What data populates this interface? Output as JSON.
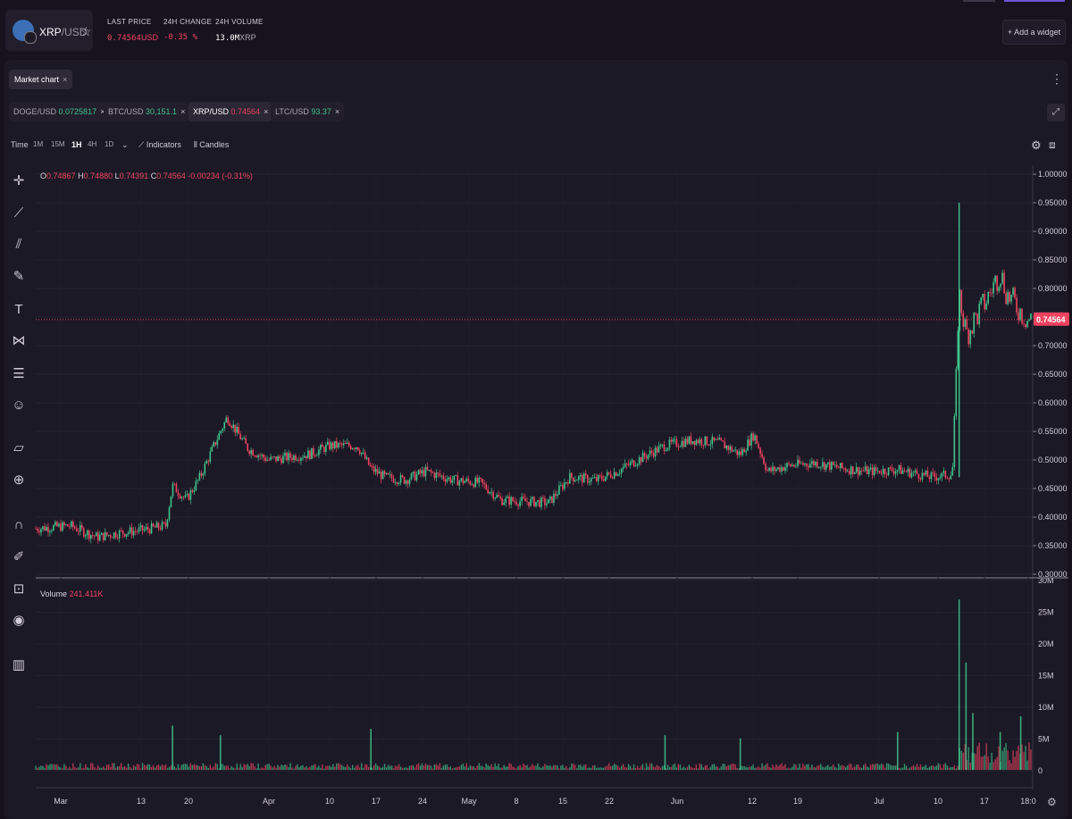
{
  "header": {
    "pair_base": "XRP",
    "pair_quote": "/USD",
    "stats": [
      {
        "label": "LAST PRICE",
        "value": "0.74564",
        "unit": "USD"
      },
      {
        "label": "24H CHANGE",
        "value": "-0.35 %",
        "unit": ""
      },
      {
        "label": "24H VOLUME",
        "value": "13.0M",
        "unit": "XRP"
      }
    ],
    "add_widget": "Add a widget",
    "plus_glyph": "+"
  },
  "market_chart": {
    "title": "Market chart",
    "close": "×"
  },
  "tabs": [
    {
      "pair": "DOGE/USD",
      "price": "0.0725817",
      "tone": "up",
      "active": false
    },
    {
      "pair": "BTC/USD",
      "price": "30,151.1",
      "tone": "up",
      "active": false
    },
    {
      "pair": "XRP/USD",
      "price": "0.74564",
      "tone": "down",
      "active": true
    },
    {
      "pair": "LTC/USD",
      "price": "93.37",
      "tone": "up",
      "active": false
    }
  ],
  "toolbar": {
    "time_label": "Time",
    "intervals": [
      "1M",
      "15M",
      "1H",
      "4H",
      "1D"
    ],
    "selected_interval": "1H",
    "indicators": "Indicators",
    "candles": "Candles"
  },
  "ohlc": {
    "o": "0.74867",
    "h": "0.74880",
    "l": "0.74391",
    "c": "0.74564",
    "change": "-0.00234 (-0.31%)"
  },
  "volume": {
    "label": "Volume",
    "value": "241.411K"
  },
  "icons": {
    "crosshair": "crosshair-icon",
    "trend_line": "trend-line-icon",
    "pitchfork": "pitchfork-icon",
    "brush": "brush-icon",
    "text": "text-icon",
    "pattern": "pattern-icon",
    "fib": "fibonacci-icon",
    "emoji": "emoji-icon",
    "ruler": "ruler-icon",
    "zoom": "zoom-in-icon",
    "magnet": "magnet-icon",
    "lock_draw": "pencil-lock-icon",
    "lock": "lock-icon",
    "eye": "eye-icon",
    "trash": "trash-icon"
  },
  "colors": {
    "up": "#3fc48b",
    "down": "#f0435f",
    "accent": "#6d52d9"
  },
  "chart_data": [
    {
      "type": "candlestick",
      "symbol": "XRP/USD",
      "interval": "1H",
      "y_ticks": [
        "1.00000",
        "0.95000",
        "0.90000",
        "0.85000",
        "0.80000",
        "0.75000",
        "0.70000",
        "0.65000",
        "0.60000",
        "0.55000",
        "0.50000",
        "0.45000",
        "0.40000",
        "0.35000",
        "0.30000"
      ],
      "ylim": [
        0.3,
        1.0
      ],
      "x_ticks": [
        "Mar",
        "13",
        "20",
        "Apr",
        "10",
        "17",
        "24",
        "May",
        "8",
        "15",
        "22",
        "Jun",
        "12",
        "19",
        "Jul",
        "10",
        "17",
        "18:0"
      ],
      "last_price": 0.74564,
      "last_price_label": "0.74564",
      "price_path": [
        [
          "Mar 01",
          0.38
        ],
        [
          "Mar 06",
          0.385
        ],
        [
          "Mar 10",
          0.365
        ],
        [
          "Mar 13",
          0.372
        ],
        [
          "Mar 17",
          0.378
        ],
        [
          "Mar 20",
          0.385
        ],
        [
          "Mar 21",
          0.455
        ],
        [
          "Mar 23",
          0.43
        ],
        [
          "Mar 25",
          0.47
        ],
        [
          "Mar 28",
          0.55
        ],
        [
          "Mar 29",
          0.575
        ],
        [
          "Apr 01",
          0.52
        ],
        [
          "Apr 04",
          0.5
        ],
        [
          "Apr 10",
          0.51
        ],
        [
          "Apr 13",
          0.525
        ],
        [
          "Apr 17",
          0.525
        ],
        [
          "Apr 19",
          0.485
        ],
        [
          "Apr 21",
          0.47
        ],
        [
          "Apr 24",
          0.465
        ],
        [
          "Apr 27",
          0.48
        ],
        [
          "May 01",
          0.465
        ],
        [
          "May 05",
          0.46
        ],
        [
          "May 08",
          0.43
        ],
        [
          "May 15",
          0.425
        ],
        [
          "May 18",
          0.47
        ],
        [
          "May 22",
          0.465
        ],
        [
          "May 25",
          0.48
        ],
        [
          "May 28",
          0.5
        ],
        [
          "Jun 01",
          0.525
        ],
        [
          "Jun 05",
          0.535
        ],
        [
          "Jun 09",
          0.53
        ],
        [
          "Jun 12",
          0.51
        ],
        [
          "Jun 14",
          0.545
        ],
        [
          "Jun 16",
          0.48
        ],
        [
          "Jun 19",
          0.49
        ],
        [
          "Jun 23",
          0.495
        ],
        [
          "Jun 27",
          0.485
        ],
        [
          "Jul 01",
          0.48
        ],
        [
          "Jul 05",
          0.483
        ],
        [
          "Jul 10",
          0.47
        ],
        [
          "Jul 13",
          0.475
        ],
        [
          "Jul 14",
          0.79
        ],
        [
          "Jul 15",
          0.72
        ],
        [
          "Jul 16",
          0.74
        ],
        [
          "Jul 18",
          0.78
        ],
        [
          "Jul 20",
          0.83
        ],
        [
          "Jul 21",
          0.79
        ],
        [
          "Jul 23",
          0.76
        ],
        [
          "Jul 24",
          0.74564
        ]
      ],
      "spike_high": 0.95
    },
    {
      "type": "bar",
      "title": "Volume",
      "y_ticks": [
        "30M",
        "25M",
        "20M",
        "15M",
        "10M",
        "5M",
        "0"
      ],
      "ylim": [
        0,
        30000000
      ],
      "spikes": [
        [
          "Mar 21",
          7000000
        ],
        [
          "Mar 28",
          5500000
        ],
        [
          "Apr 19",
          6500000
        ],
        [
          "Jun 01",
          5500000
        ],
        [
          "Jun 12",
          5000000
        ],
        [
          "Jul 05",
          6000000
        ],
        [
          "Jul 14",
          27000000
        ],
        [
          "Jul 15",
          17000000
        ],
        [
          "Jul 16",
          9000000
        ],
        [
          "Jul 20",
          6000000
        ],
        [
          "Jul 23",
          8500000
        ]
      ]
    }
  ]
}
